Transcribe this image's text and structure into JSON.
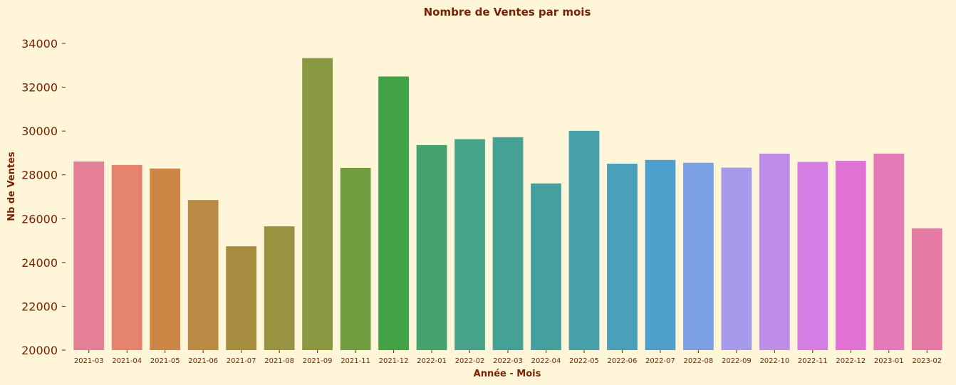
{
  "chart_data": {
    "type": "bar",
    "title": "Nombre de Ventes par mois",
    "xlabel": "Année - Mois",
    "ylabel": "Nb de Ventes",
    "ylim": [
      20000,
      35200
    ],
    "yticks": [
      "20000",
      "22000",
      "24000",
      "26000",
      "28000",
      "30000",
      "32000",
      "34000"
    ],
    "grid": false,
    "categories": [
      "2021-03",
      "2021-04",
      "2021-05",
      "2021-06",
      "2021-07",
      "2021-08",
      "2021-09",
      "2021-11",
      "2021-12",
      "2022-01",
      "2022-02",
      "2022-03",
      "2022-04",
      "2022-05",
      "2022-06",
      "2022-07",
      "2022-08",
      "2022-09",
      "2022-10",
      "2022-11",
      "2022-12",
      "2023-01",
      "2023-02"
    ],
    "values": [
      28610,
      28450,
      28290,
      26850,
      24740,
      25650,
      33330,
      28320,
      32490,
      29360,
      29630,
      29720,
      27610,
      30010,
      28510,
      28680,
      28550,
      28330,
      28970,
      28590,
      28640,
      28970,
      25560
    ],
    "colors": [
      "#e57f95",
      "#e5836e",
      "#cc8646",
      "#b98b45",
      "#a68c40",
      "#989340",
      "#8a9841",
      "#6f9d3f",
      "#41a346",
      "#45a36f",
      "#46a38a",
      "#45a193",
      "#469f9f",
      "#479fa9",
      "#4aa0ba",
      "#4f9fcd",
      "#7ba0e3",
      "#a59bea",
      "#be8de8",
      "#d47de5",
      "#e173d4",
      "#e47ab6",
      "#e57ba4"
    ]
  }
}
